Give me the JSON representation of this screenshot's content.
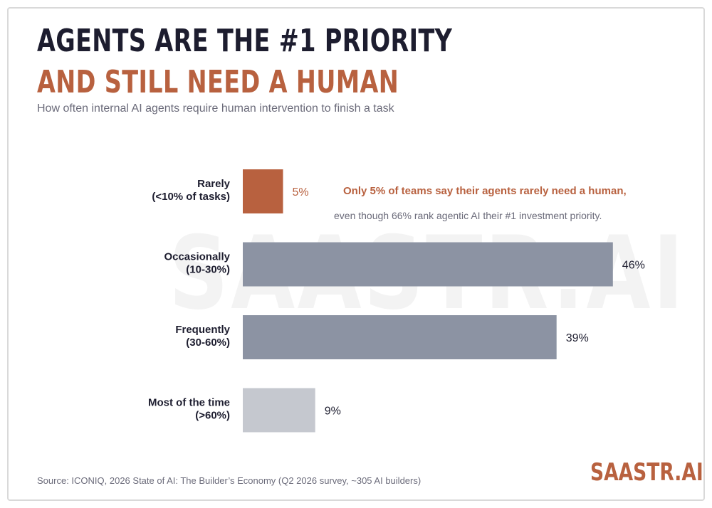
{
  "header": {
    "title_line1": "AGENTS ARE THE #1 PRIORITY",
    "title_line2": "AND STILL NEED A HUMAN",
    "subtitle": "How often internal AI agents require human intervention to finish a task"
  },
  "watermark": "SAASTR.AI",
  "annotation": {
    "highlight": "Only 5% of teams say their agents rarely need a human,",
    "detail": "even though 66% rank agentic AI their #1 investment priority."
  },
  "footer": {
    "source": "Source: ICONIQ, 2026 State of AI: The Builder’s Economy (Q2 2026 survey, ~305 AI builders)",
    "brand": "SAASTR.AI"
  },
  "chart_data": {
    "type": "bar",
    "orientation": "horizontal",
    "title": "AGENTS ARE THE #1 PRIORITY AND STILL NEED A HUMAN",
    "subtitle": "How often internal AI agents require human intervention to finish a task",
    "categories": [
      [
        "Rarely",
        "(<10% of tasks)"
      ],
      [
        "Occasionally",
        "(10-30%)"
      ],
      [
        "Frequently",
        "(30-60%)"
      ],
      [
        "Most of the time",
        "(>60%)"
      ]
    ],
    "values": [
      5,
      46,
      39,
      9
    ],
    "value_labels": [
      "5%",
      "46%",
      "39%",
      "9%"
    ],
    "bar_colors": [
      "#b8613f",
      "#8c93a3",
      "#8c93a3",
      "#c5c8cf"
    ],
    "value_label_colors": [
      "#b8613f",
      "#1d1d2f",
      "#1d1d2f",
      "#1d1d2f"
    ],
    "xlim": [
      0,
      50
    ],
    "grid": false,
    "legend": "none"
  }
}
